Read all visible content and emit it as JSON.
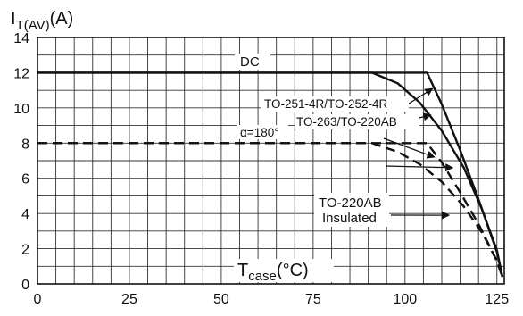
{
  "chart_data": {
    "type": "line",
    "title": "",
    "ylabel": {
      "main": "I",
      "sub": "T(AV)",
      "unit": "(A)"
    },
    "xlabel": {
      "main": "T",
      "sub": "case",
      "unit": "(°C)"
    },
    "xlim": [
      0,
      127
    ],
    "ylim": [
      0,
      14
    ],
    "grid": true,
    "x_ticks": [
      "0",
      "25",
      "50",
      "75",
      "100",
      "125"
    ],
    "x_tick_values": [
      0,
      25,
      50,
      75,
      100,
      125
    ],
    "y_ticks": [
      "0",
      "2",
      "4",
      "6",
      "8",
      "10",
      "12",
      "14"
    ],
    "y_tick_values": [
      0,
      2,
      4,
      6,
      8,
      10,
      12,
      14
    ],
    "series": [
      {
        "style": "solid",
        "x": [
          0,
          106,
          110,
          115,
          120,
          125,
          126.5
        ],
        "y": [
          12,
          12,
          10.2,
          7.6,
          4.8,
          1.8,
          0.4
        ]
      },
      {
        "style": "solid",
        "x": [
          0,
          91,
          98,
          104,
          110,
          116,
          121,
          125,
          126.5
        ],
        "y": [
          12,
          12,
          11.4,
          10.3,
          8.7,
          6.6,
          4.2,
          1.9,
          0.4
        ]
      },
      {
        "style": "dashed",
        "x": [
          0,
          106,
          110,
          115,
          120,
          125,
          126.5
        ],
        "y": [
          8,
          8,
          6.9,
          5.2,
          3.4,
          1.3,
          0.4
        ]
      },
      {
        "style": "dashed",
        "x": [
          0,
          91,
          98,
          104,
          110,
          116,
          121,
          125,
          126.5
        ],
        "y": [
          8,
          8,
          7.5,
          6.8,
          5.8,
          4.4,
          2.9,
          1.3,
          0.4
        ]
      }
    ],
    "annotations": [
      {
        "id": "dc",
        "text": "DC"
      },
      {
        "id": "pkg1",
        "text": "TO-251-4R/TO-252-4R"
      },
      {
        "id": "pkg2",
        "text": "TO-263/TO-220AB"
      },
      {
        "id": "alpha",
        "text": "α=180°"
      },
      {
        "id": "ins1",
        "text": "TO-220AB"
      },
      {
        "id": "ins2",
        "text": "Insulated"
      }
    ]
  }
}
